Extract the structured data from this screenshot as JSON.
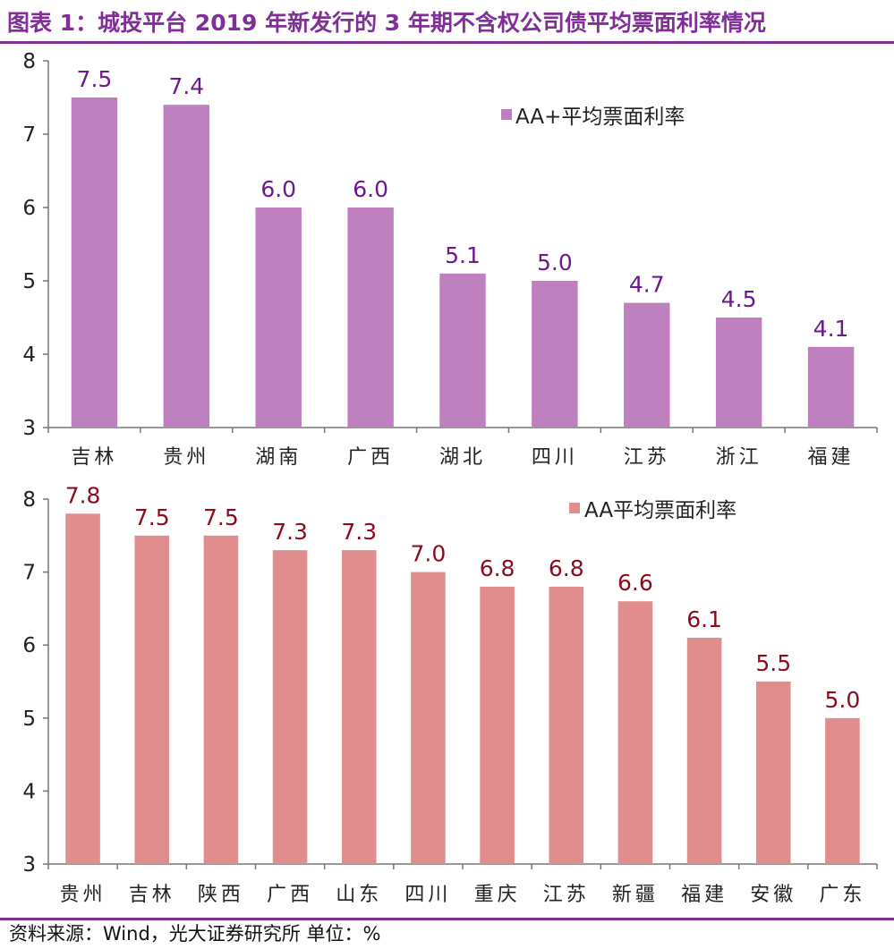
{
  "title": "图表 1：城投平台 2019 年新发行的 3 年期不含权公司债平均票面利率情况",
  "source": "资料来源：Wind，光大证券研究所    单位：%",
  "chart_data": [
    {
      "type": "bar",
      "categories": [
        "吉林",
        "贵州",
        "湖南",
        "广西",
        "湖北",
        "四川",
        "江苏",
        "浙江",
        "福建"
      ],
      "series": [
        {
          "name": "AA+平均票面利率",
          "values": [
            7.5,
            7.4,
            6.0,
            6.0,
            5.1,
            5.0,
            4.7,
            4.5,
            4.1
          ]
        }
      ],
      "ylim": [
        3,
        8
      ],
      "yticks": [
        "3",
        "4",
        "5",
        "6",
        "7",
        "8"
      ],
      "legend": "top-right",
      "grid": false,
      "bar_color": "#bf80c0",
      "label_color": "#6a1a8a"
    },
    {
      "type": "bar",
      "categories": [
        "贵州",
        "吉林",
        "陕西",
        "广西",
        "山东",
        "四川",
        "重庆",
        "江苏",
        "新疆",
        "福建",
        "安徽",
        "广东"
      ],
      "series": [
        {
          "name": "AA平均票面利率",
          "values": [
            7.8,
            7.5,
            7.5,
            7.3,
            7.3,
            7.0,
            6.8,
            6.8,
            6.6,
            6.1,
            5.5,
            5.0
          ]
        }
      ],
      "ylim": [
        3,
        8
      ],
      "yticks": [
        "3",
        "4",
        "5",
        "6",
        "7",
        "8"
      ],
      "legend": "top-right",
      "grid": false,
      "bar_color": "#e28d8d",
      "label_color": "#8b0c1c"
    }
  ]
}
